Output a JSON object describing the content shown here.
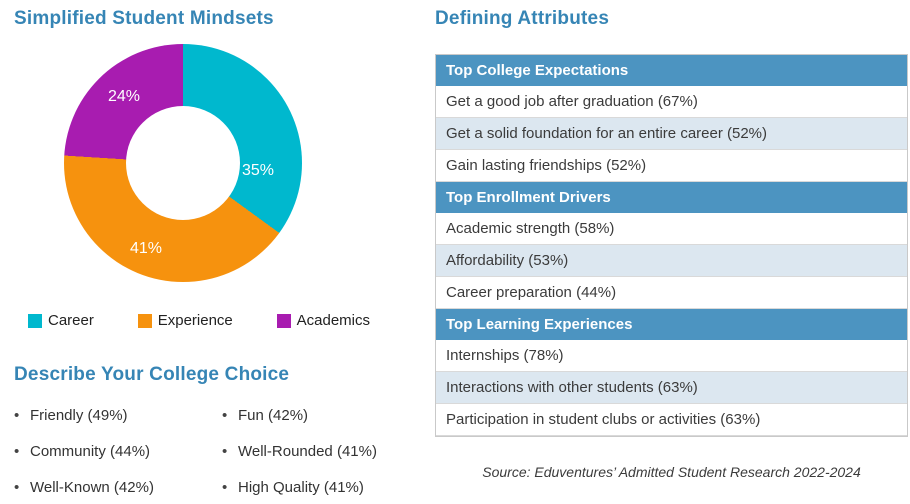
{
  "colors": {
    "accent_blue": "#3685B5",
    "table_header_blue": "#4C94C1",
    "alt_row_blue": "#DCE7F0"
  },
  "left": {
    "chart_title": "Simplified Student Mindsets",
    "college_choice": {
      "title": "Describe Your College Choice",
      "col1": [
        "Friendly (49%)",
        "Community (44%)",
        "Well-Known (42%)"
      ],
      "col2": [
        "Fun (42%)",
        "Well-Rounded (41%)",
        "High Quality (41%)"
      ]
    }
  },
  "right": {
    "title": "Defining Attributes",
    "sections": [
      {
        "header": "Top College Expectations",
        "rows": [
          "Get a good job after graduation (67%)",
          "Get a solid foundation for an entire career (52%)",
          "Gain lasting friendships (52%)"
        ]
      },
      {
        "header": "Top Enrollment Drivers",
        "rows": [
          "Academic strength (58%)",
          "Affordability (53%)",
          "Career preparation (44%)"
        ]
      },
      {
        "header": "Top Learning Experiences",
        "rows": [
          "Internships (78%)",
          "Interactions with other students (63%)",
          "Participation in student clubs or activities (63%)"
        ]
      }
    ],
    "source": "Source: Eduventures’ Admitted Student Research 2022-2024"
  },
  "chart_data": {
    "type": "pie",
    "subtype": "donut",
    "title": "Simplified Student Mindsets",
    "categories": [
      "Career",
      "Experience",
      "Academics"
    ],
    "values": [
      35,
      41,
      24
    ],
    "labels": [
      "35%",
      "41%",
      "24%"
    ],
    "colors": [
      "#00B8CE",
      "#F6920E",
      "#A81CB0"
    ],
    "start_angle_deg": 0,
    "direction": "clockwise",
    "legend_position": "bottom"
  }
}
